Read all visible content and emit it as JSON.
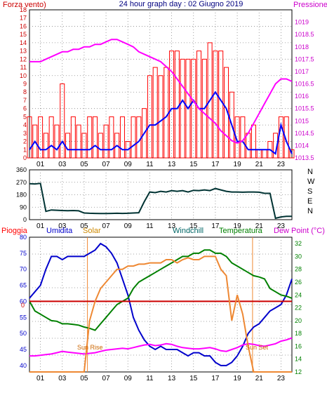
{
  "chart_data": [
    {
      "type": "line",
      "title": "24 hour graph day : 02 Giugno 2019",
      "left_axis_label": "Forza vento)",
      "right_axis_label": "Pressione",
      "x_ticks": [
        "01",
        "03",
        "05",
        "07",
        "09",
        "11",
        "13",
        "15",
        "17",
        "19",
        "21",
        "23"
      ],
      "hours": [
        0,
        0.5,
        1,
        1.5,
        2,
        2.5,
        3,
        3.5,
        4,
        4.5,
        5,
        5.5,
        6,
        6.5,
        7,
        7.5,
        8,
        8.5,
        9,
        9.5,
        10,
        10.5,
        11,
        11.5,
        12,
        12.5,
        13,
        13.5,
        14,
        14.5,
        15,
        15.5,
        16,
        16.5,
        17,
        17.5,
        18,
        18.5,
        19,
        19.5,
        20,
        20.5,
        21,
        21.5,
        22,
        22.5,
        23,
        23.5,
        24
      ],
      "ylim_left": [
        0,
        18
      ],
      "ylim_right": [
        1013.5,
        1019.5
      ],
      "left_ticks": [
        0,
        1,
        2,
        3,
        4,
        5,
        6,
        7,
        8,
        9,
        10,
        11,
        12,
        13,
        14,
        15,
        16,
        17,
        18
      ],
      "right_ticks": [
        "1013.5",
        "1014",
        "1014.5",
        "1015",
        "1015.5",
        "1016",
        "1016.5",
        "1017",
        "1017.5",
        "1018",
        "1018.5",
        "1019"
      ],
      "series": [
        {
          "color": "#ff0000",
          "values": [
            5,
            4,
            5,
            3,
            5,
            4,
            9,
            3,
            5,
            4,
            3,
            5,
            5,
            3,
            4,
            5,
            3,
            5,
            2,
            5,
            5,
            6,
            10,
            11,
            10,
            11,
            13,
            13,
            12,
            12,
            12,
            13,
            12,
            14,
            13,
            13,
            11,
            8,
            5,
            5,
            3,
            4,
            1,
            1,
            2,
            3,
            5,
            5,
            1
          ]
        },
        {
          "color": "#0000ff",
          "values": [
            1,
            2,
            1,
            1,
            1.5,
            1,
            2,
            1,
            1,
            1,
            1,
            1,
            1.5,
            1,
            1,
            1,
            1.5,
            1,
            1,
            1.5,
            2,
            3,
            4,
            4,
            4.5,
            5,
            6,
            6,
            7,
            6,
            7,
            6,
            6,
            7,
            8,
            7,
            6,
            4,
            2,
            2,
            1,
            1,
            1,
            1,
            1,
            0.5,
            4,
            2,
            0.5
          ]
        },
        {
          "color": "#ff00ff",
          "values": [
            1017.4,
            1017.4,
            1017.4,
            1017.5,
            1017.6,
            1017.7,
            1017.8,
            1017.8,
            1017.9,
            1017.9,
            1018,
            1018,
            1018.1,
            1018.1,
            1018.2,
            1018.3,
            1018.3,
            1018.2,
            1018.1,
            1018.0,
            1017.8,
            1017.7,
            1017.6,
            1017.5,
            1017.4,
            1017.2,
            1017.0,
            1016.7,
            1016.4,
            1016.1,
            1015.8,
            1015.5,
            1015.3,
            1015.1,
            1014.9,
            1014.6,
            1014.4,
            1014.2,
            1014.1,
            1014.2,
            1014.5,
            1014.9,
            1015.3,
            1015.7,
            1016.1,
            1016.5,
            1016.7,
            1016.7,
            1016.6
          ]
        }
      ]
    },
    {
      "type": "line",
      "x_ticks": [
        "01",
        "03",
        "05",
        "07",
        "09",
        "11",
        "13",
        "15",
        "17",
        "19",
        "21",
        "23"
      ],
      "hours": [
        0,
        0.5,
        1,
        1.5,
        2,
        2.5,
        3,
        3.5,
        4,
        4.5,
        5,
        5.5,
        6,
        6.5,
        7,
        7.5,
        8,
        8.5,
        9,
        9.5,
        10,
        10.5,
        11,
        11.5,
        12,
        12.5,
        13,
        13.5,
        14,
        14.5,
        15,
        15.5,
        16,
        16.5,
        17,
        17.5,
        18,
        18.5,
        19,
        19.5,
        20,
        20.5,
        21,
        21.5,
        22,
        22.5,
        23,
        23.5,
        24
      ],
      "ylim": [
        0,
        360
      ],
      "left_ticks": [
        0,
        90,
        180,
        270,
        360
      ],
      "right_labels": [
        "N",
        "W",
        "S",
        "E",
        "N"
      ],
      "series": [
        {
          "color": "#003333",
          "values": [
            260,
            258,
            262,
            60,
            70,
            68,
            66,
            65,
            66,
            64,
            48,
            46,
            45,
            44,
            44,
            45,
            46,
            45,
            46,
            48,
            50,
            130,
            200,
            195,
            205,
            200,
            210,
            205,
            210,
            200,
            212,
            210,
            215,
            210,
            225,
            215,
            205,
            200,
            200,
            198,
            200,
            200,
            198,
            190,
            190,
            10,
            20,
            24,
            24
          ]
        }
      ]
    },
    {
      "type": "line",
      "labels": {
        "pioggia": "Pioggia",
        "umidita": "Umidita",
        "solar": "Solar",
        "windchill": "Windchill",
        "temperatura": "Temperatura",
        "dewpoint": "Dew Point (°C)",
        "sunrise": "Sun Rise",
        "sunset": "Sun Set"
      },
      "x_ticks": [
        "01",
        "03",
        "05",
        "07",
        "09",
        "11",
        "13",
        "15",
        "17",
        "19",
        "21",
        "23"
      ],
      "hours": [
        0,
        0.5,
        1,
        1.5,
        2,
        2.5,
        3,
        3.5,
        4,
        4.5,
        5,
        5.5,
        6,
        6.5,
        7,
        7.5,
        8,
        8.5,
        9,
        9.5,
        10,
        10.5,
        11,
        11.5,
        12,
        12.5,
        13,
        13.5,
        14,
        14.5,
        15,
        15.5,
        16,
        16.5,
        17,
        17.5,
        18,
        18.5,
        19,
        19.5,
        20,
        20.5,
        21,
        21.5,
        22,
        22.5,
        23,
        23.5,
        24
      ],
      "ylim_left": [
        38,
        80
      ],
      "ylim_right": [
        12,
        33
      ],
      "left_ticks": [
        40,
        45,
        50,
        55,
        60,
        65,
        70,
        75,
        80
      ],
      "right_ticks": [
        12,
        14,
        16,
        18,
        20,
        22,
        24,
        26,
        28,
        30,
        32
      ],
      "rain_label": "0",
      "sunrise_hour": 5.3,
      "sunset_hour": 20.4,
      "series": [
        {
          "color": "#0000cc",
          "axis": "left",
          "values": [
            61,
            63,
            65,
            70,
            74,
            74,
            73,
            74,
            74,
            74,
            74,
            75,
            76,
            78,
            77,
            75,
            72,
            67,
            62,
            55,
            51,
            48,
            46,
            45,
            46,
            45,
            45,
            45,
            44,
            43,
            44,
            44,
            43,
            43,
            41,
            40,
            40,
            41,
            43,
            46,
            50,
            52,
            53,
            55,
            57,
            58,
            59,
            62,
            67
          ]
        },
        {
          "color": "#008000",
          "axis": "right",
          "values": [
            23,
            21.5,
            21,
            20.5,
            20,
            19.9,
            19.5,
            19.5,
            19.4,
            19.3,
            19,
            18.8,
            18.5,
            19.5,
            20.5,
            21.5,
            22.5,
            23,
            23.5,
            25,
            26,
            26.5,
            27,
            27.5,
            28,
            28.5,
            29,
            29.5,
            30,
            30,
            30.5,
            30.5,
            31,
            31,
            30.5,
            30.5,
            30,
            29,
            28.5,
            28,
            27.5,
            27,
            26.8,
            26.5,
            25,
            24.5,
            24,
            23.8,
            23.5
          ]
        },
        {
          "color": "#cc0000",
          "axis": "right",
          "values": [
            23,
            23,
            23,
            23,
            23,
            23,
            23,
            23,
            23,
            23,
            23,
            23,
            23,
            23,
            23,
            23,
            23,
            23,
            23,
            23,
            23,
            23,
            23,
            23,
            23,
            23,
            23,
            23,
            23,
            23,
            23,
            23,
            23,
            23,
            23,
            23,
            23,
            23,
            23,
            23,
            23,
            23,
            23,
            23,
            23,
            23,
            23,
            23,
            23
          ]
        },
        {
          "color": "#ff00ff",
          "axis": "right",
          "values": [
            14.5,
            14.5,
            14.6,
            14.7,
            14.8,
            15,
            15.2,
            15.1,
            15,
            14.9,
            14.8,
            14.9,
            15,
            15.2,
            15.4,
            15.5,
            15.6,
            15.7,
            15.6,
            15.8,
            16,
            16.2,
            16.3,
            16.1,
            16.2,
            16.4,
            16.3,
            16,
            15.8,
            15.7,
            15.6,
            15.6,
            15.7,
            15.8,
            15.6,
            15.3,
            15.2,
            15.5,
            15.8,
            16.2,
            16.4,
            16.3,
            16.1,
            16,
            16.2,
            16.4,
            16.8,
            17,
            17.3
          ]
        },
        {
          "color": "#ee8833",
          "axis": "right",
          "values": [
            12,
            12,
            12,
            12,
            12,
            12,
            12,
            12,
            12,
            12,
            12,
            20,
            23,
            25,
            26,
            27,
            28,
            28,
            28.5,
            28.5,
            28.8,
            28.8,
            29,
            29,
            29,
            29.5,
            29.5,
            29,
            29.5,
            29.8,
            29.5,
            29.5,
            30,
            30,
            30,
            28,
            27,
            20,
            24,
            21,
            16,
            12,
            12,
            12,
            12,
            12,
            12,
            12,
            12
          ]
        }
      ]
    }
  ]
}
